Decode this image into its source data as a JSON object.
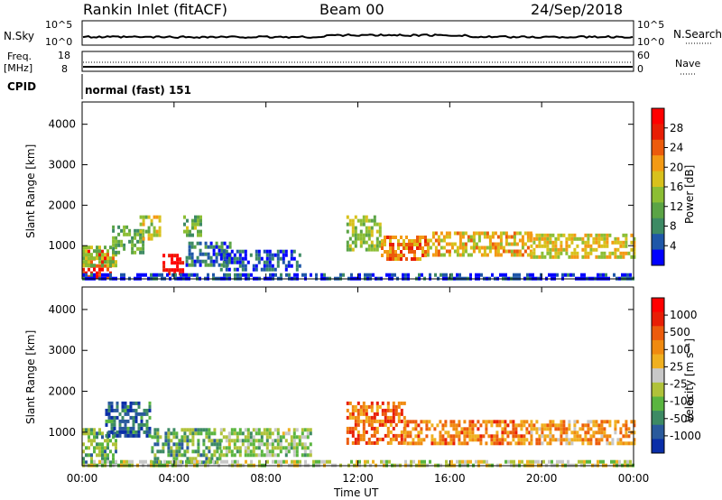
{
  "header": {
    "station": "Rankin Inlet (fitACF)",
    "beam": "Beam 00",
    "date": "24/Sep/2018"
  },
  "top_panels": {
    "nsky_label": "N.Sky",
    "nsky_ticks": [
      "10^5",
      "10^0"
    ],
    "nsearch_label": "N.Search",
    "nsearch_ticks": [
      "10^5",
      "10^0"
    ],
    "freq_label_line1": "Freq.",
    "freq_label_line2": "[MHz]",
    "freq_ticks": [
      "18",
      "8"
    ],
    "nave_label": "Nave",
    "nave_ticks": [
      "60",
      "0"
    ],
    "cpid_label": "CPID",
    "cpid_value": "normal (fast) 151"
  },
  "colors": {
    "power": [
      "#0000ff",
      "#1f57a8",
      "#3d8a64",
      "#5ba445",
      "#8cbe34",
      "#d8c11c",
      "#f39a14",
      "#ec5b0c",
      "#e81e05",
      "#ff0000"
    ],
    "velocity": [
      "#0a2ea8",
      "#2a5a9c",
      "#3d8a64",
      "#5ab540",
      "#b0c23a",
      "#c8c8c8",
      "#f0b020",
      "#f08a10",
      "#ec5b0c",
      "#e81e05",
      "#ff0000"
    ]
  },
  "chart_data": [
    {
      "type": "heatmap",
      "name": "power",
      "ylabel": "Slant Range [km]",
      "yticks": [
        1000,
        2000,
        3000,
        4000
      ],
      "ylim": [
        180,
        4550
      ],
      "xlim": [
        0,
        24
      ],
      "colorbar_label": "Power [dB]",
      "colorbar_ticks": [
        "28",
        "24",
        "20",
        "16",
        "12",
        "8",
        "4"
      ],
      "colorbar_range": [
        0,
        32
      ],
      "regions": [
        {
          "t0": 0.0,
          "t1": 1.3,
          "r0": 200,
          "r1": 900,
          "level": 0.85
        },
        {
          "t0": 0.0,
          "t1": 1.5,
          "r0": 500,
          "r1": 1000,
          "level": 0.45
        },
        {
          "t0": 1.3,
          "t1": 2.6,
          "r0": 800,
          "r1": 1500,
          "level": 0.35
        },
        {
          "t0": 2.5,
          "t1": 3.4,
          "r0": 1200,
          "r1": 1750,
          "level": 0.5
        },
        {
          "t0": 3.5,
          "t1": 4.4,
          "r0": 300,
          "r1": 800,
          "level": 0.95
        },
        {
          "t0": 4.4,
          "t1": 5.2,
          "r0": 1300,
          "r1": 1750,
          "level": 0.4
        },
        {
          "t0": 4.5,
          "t1": 6.5,
          "r0": 500,
          "r1": 1100,
          "level": 0.2
        },
        {
          "t0": 6.0,
          "t1": 9.5,
          "r0": 400,
          "r1": 900,
          "level": 0.15
        },
        {
          "t0": 11.5,
          "t1": 13.0,
          "r0": 900,
          "r1": 1750,
          "level": 0.45
        },
        {
          "t0": 13.0,
          "t1": 15.0,
          "r0": 700,
          "r1": 1250,
          "level": 0.7
        },
        {
          "t0": 15.0,
          "t1": 19.5,
          "r0": 800,
          "r1": 1350,
          "level": 0.6
        },
        {
          "t0": 19.5,
          "t1": 24.0,
          "r0": 750,
          "r1": 1300,
          "level": 0.55
        },
        {
          "t0": 0.0,
          "t1": 24.0,
          "r0": 180,
          "r1": 320,
          "level": 0.1
        }
      ]
    },
    {
      "type": "heatmap",
      "name": "velocity",
      "ylabel": "Slant Range [km]",
      "yticks": [
        1000,
        2000,
        3000,
        4000
      ],
      "ylim": [
        180,
        4550
      ],
      "xlim": [
        0,
        24
      ],
      "xlabel": "Time UT",
      "xticks": [
        "00:00",
        "04:00",
        "08:00",
        "12:00",
        "16:00",
        "20:00",
        "00:00"
      ],
      "colorbar_label": "Velocity [m s⁻¹]",
      "colorbar_ticks": [
        "1000",
        "500",
        "100",
        "25",
        "-25",
        "-100",
        "-500",
        "-1000"
      ],
      "colorbar_range": [
        -1200,
        1200
      ],
      "regions": [
        {
          "t0": 0.0,
          "t1": 1.5,
          "r0": 300,
          "r1": 1100,
          "level": 0.3
        },
        {
          "t0": 1.0,
          "t1": 3.0,
          "r0": 900,
          "r1": 1750,
          "level": 0.15
        },
        {
          "t0": 3.0,
          "t1": 6.0,
          "r0": 300,
          "r1": 1100,
          "level": 0.3
        },
        {
          "t0": 6.0,
          "t1": 10.0,
          "r0": 400,
          "r1": 1100,
          "level": 0.4
        },
        {
          "t0": 11.5,
          "t1": 14.0,
          "r0": 700,
          "r1": 1750,
          "level": 0.75
        },
        {
          "t0": 14.0,
          "t1": 19.5,
          "r0": 700,
          "r1": 1300,
          "level": 0.7
        },
        {
          "t0": 19.5,
          "t1": 24.0,
          "r0": 700,
          "r1": 1300,
          "level": 0.65
        },
        {
          "t0": 0.0,
          "t1": 24.0,
          "r0": 180,
          "r1": 320,
          "level": 0.45
        }
      ]
    }
  ]
}
